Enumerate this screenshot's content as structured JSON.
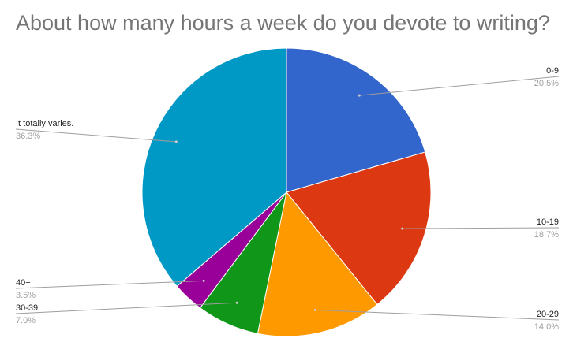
{
  "chart_data": {
    "type": "pie",
    "title": "About how many hours a week do you devote to writing?",
    "slices": [
      {
        "label": "0-9",
        "value": 20.5,
        "display": "20.5%",
        "color": "#3366cc"
      },
      {
        "label": "10-19",
        "value": 18.7,
        "display": "18.7%",
        "color": "#dc3912"
      },
      {
        "label": "20-29",
        "value": 14.0,
        "display": "14.0%",
        "color": "#ff9900"
      },
      {
        "label": "30-39",
        "value": 7.0,
        "display": "7.0%",
        "color": "#109618"
      },
      {
        "label": "40+",
        "value": 3.5,
        "display": "3.5%",
        "color": "#990099"
      },
      {
        "label": "It totally varies.",
        "value": 36.3,
        "display": "36.3%",
        "color": "#0099c6"
      }
    ],
    "legend": "none"
  }
}
